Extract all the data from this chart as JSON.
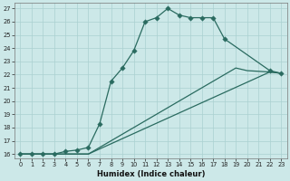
{
  "xlabel": "Humidex (Indice chaleur)",
  "bg_color": "#cce8e8",
  "line_color": "#2a6b60",
  "grid_color": "#aad0d0",
  "xlim": [
    -0.5,
    23.5
  ],
  "ylim": [
    15.7,
    27.4
  ],
  "xticks": [
    0,
    1,
    2,
    3,
    4,
    5,
    6,
    7,
    8,
    9,
    10,
    11,
    12,
    13,
    14,
    15,
    16,
    17,
    18,
    19,
    20,
    21,
    22,
    23
  ],
  "yticks": [
    16,
    17,
    18,
    19,
    20,
    21,
    22,
    23,
    24,
    25,
    26,
    27
  ],
  "line1_x": [
    0,
    1,
    2,
    3,
    4,
    5,
    6,
    7,
    8,
    9,
    10,
    11,
    12,
    13,
    14,
    15,
    16,
    17,
    18,
    22,
    23
  ],
  "line1_y": [
    16,
    16,
    16,
    16,
    16.2,
    16.3,
    16.5,
    18.3,
    21.5,
    22.5,
    23.8,
    26.0,
    26.3,
    27.0,
    26.5,
    26.3,
    26.3,
    26.3,
    24.7,
    22.3,
    22.1
  ],
  "line2_x": [
    0,
    6,
    22,
    23
  ],
  "line2_y": [
    16,
    16,
    22.2,
    22.1
  ],
  "line3_x": [
    0,
    6,
    19,
    20,
    22,
    23
  ],
  "line3_y": [
    16,
    16,
    22.5,
    22.3,
    22.2,
    22.1
  ]
}
